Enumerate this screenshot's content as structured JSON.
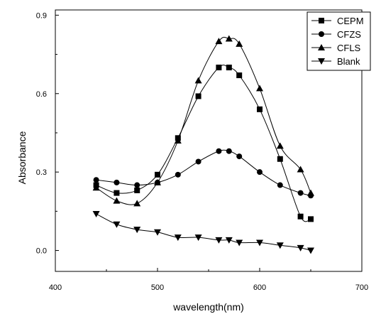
{
  "chart_data": {
    "type": "line",
    "title": "",
    "xlabel": "wavelength(nm)",
    "ylabel": "Absorbance",
    "xlim": [
      400,
      700
    ],
    "ylim": [
      -0.08,
      0.92
    ],
    "xticks": [
      400,
      500,
      600,
      700
    ],
    "xtick_labels": [
      "400",
      "500",
      "600",
      "700"
    ],
    "yticks": [
      0.0,
      0.3,
      0.6,
      0.9
    ],
    "ytick_labels": [
      "0.0",
      "0.3",
      "0.6",
      "0.9"
    ],
    "grid": false,
    "legend_position": "top-right",
    "series": [
      {
        "name": "CEPM",
        "marker": "square",
        "x": [
          440,
          460,
          480,
          500,
          520,
          540,
          560,
          570,
          580,
          600,
          620,
          640,
          650
        ],
        "y": [
          0.25,
          0.22,
          0.23,
          0.29,
          0.43,
          0.59,
          0.7,
          0.7,
          0.67,
          0.54,
          0.35,
          0.13,
          0.12
        ]
      },
      {
        "name": "CFZS",
        "marker": "circle",
        "x": [
          440,
          460,
          480,
          500,
          520,
          540,
          560,
          570,
          580,
          600,
          620,
          640,
          650
        ],
        "y": [
          0.27,
          0.26,
          0.25,
          0.26,
          0.29,
          0.34,
          0.38,
          0.38,
          0.36,
          0.3,
          0.25,
          0.22,
          0.21
        ]
      },
      {
        "name": "CFLS",
        "marker": "triangle-up",
        "x": [
          440,
          460,
          480,
          500,
          520,
          540,
          560,
          570,
          580,
          600,
          620,
          640,
          650
        ],
        "y": [
          0.24,
          0.19,
          0.18,
          0.26,
          0.42,
          0.65,
          0.8,
          0.81,
          0.79,
          0.62,
          0.4,
          0.31,
          0.22
        ]
      },
      {
        "name": "Blank",
        "marker": "triangle-down",
        "x": [
          440,
          460,
          480,
          500,
          520,
          540,
          560,
          570,
          580,
          600,
          620,
          640,
          650
        ],
        "y": [
          0.14,
          0.1,
          0.08,
          0.07,
          0.05,
          0.05,
          0.04,
          0.04,
          0.03,
          0.03,
          0.02,
          0.01,
          0.0
        ]
      }
    ]
  }
}
